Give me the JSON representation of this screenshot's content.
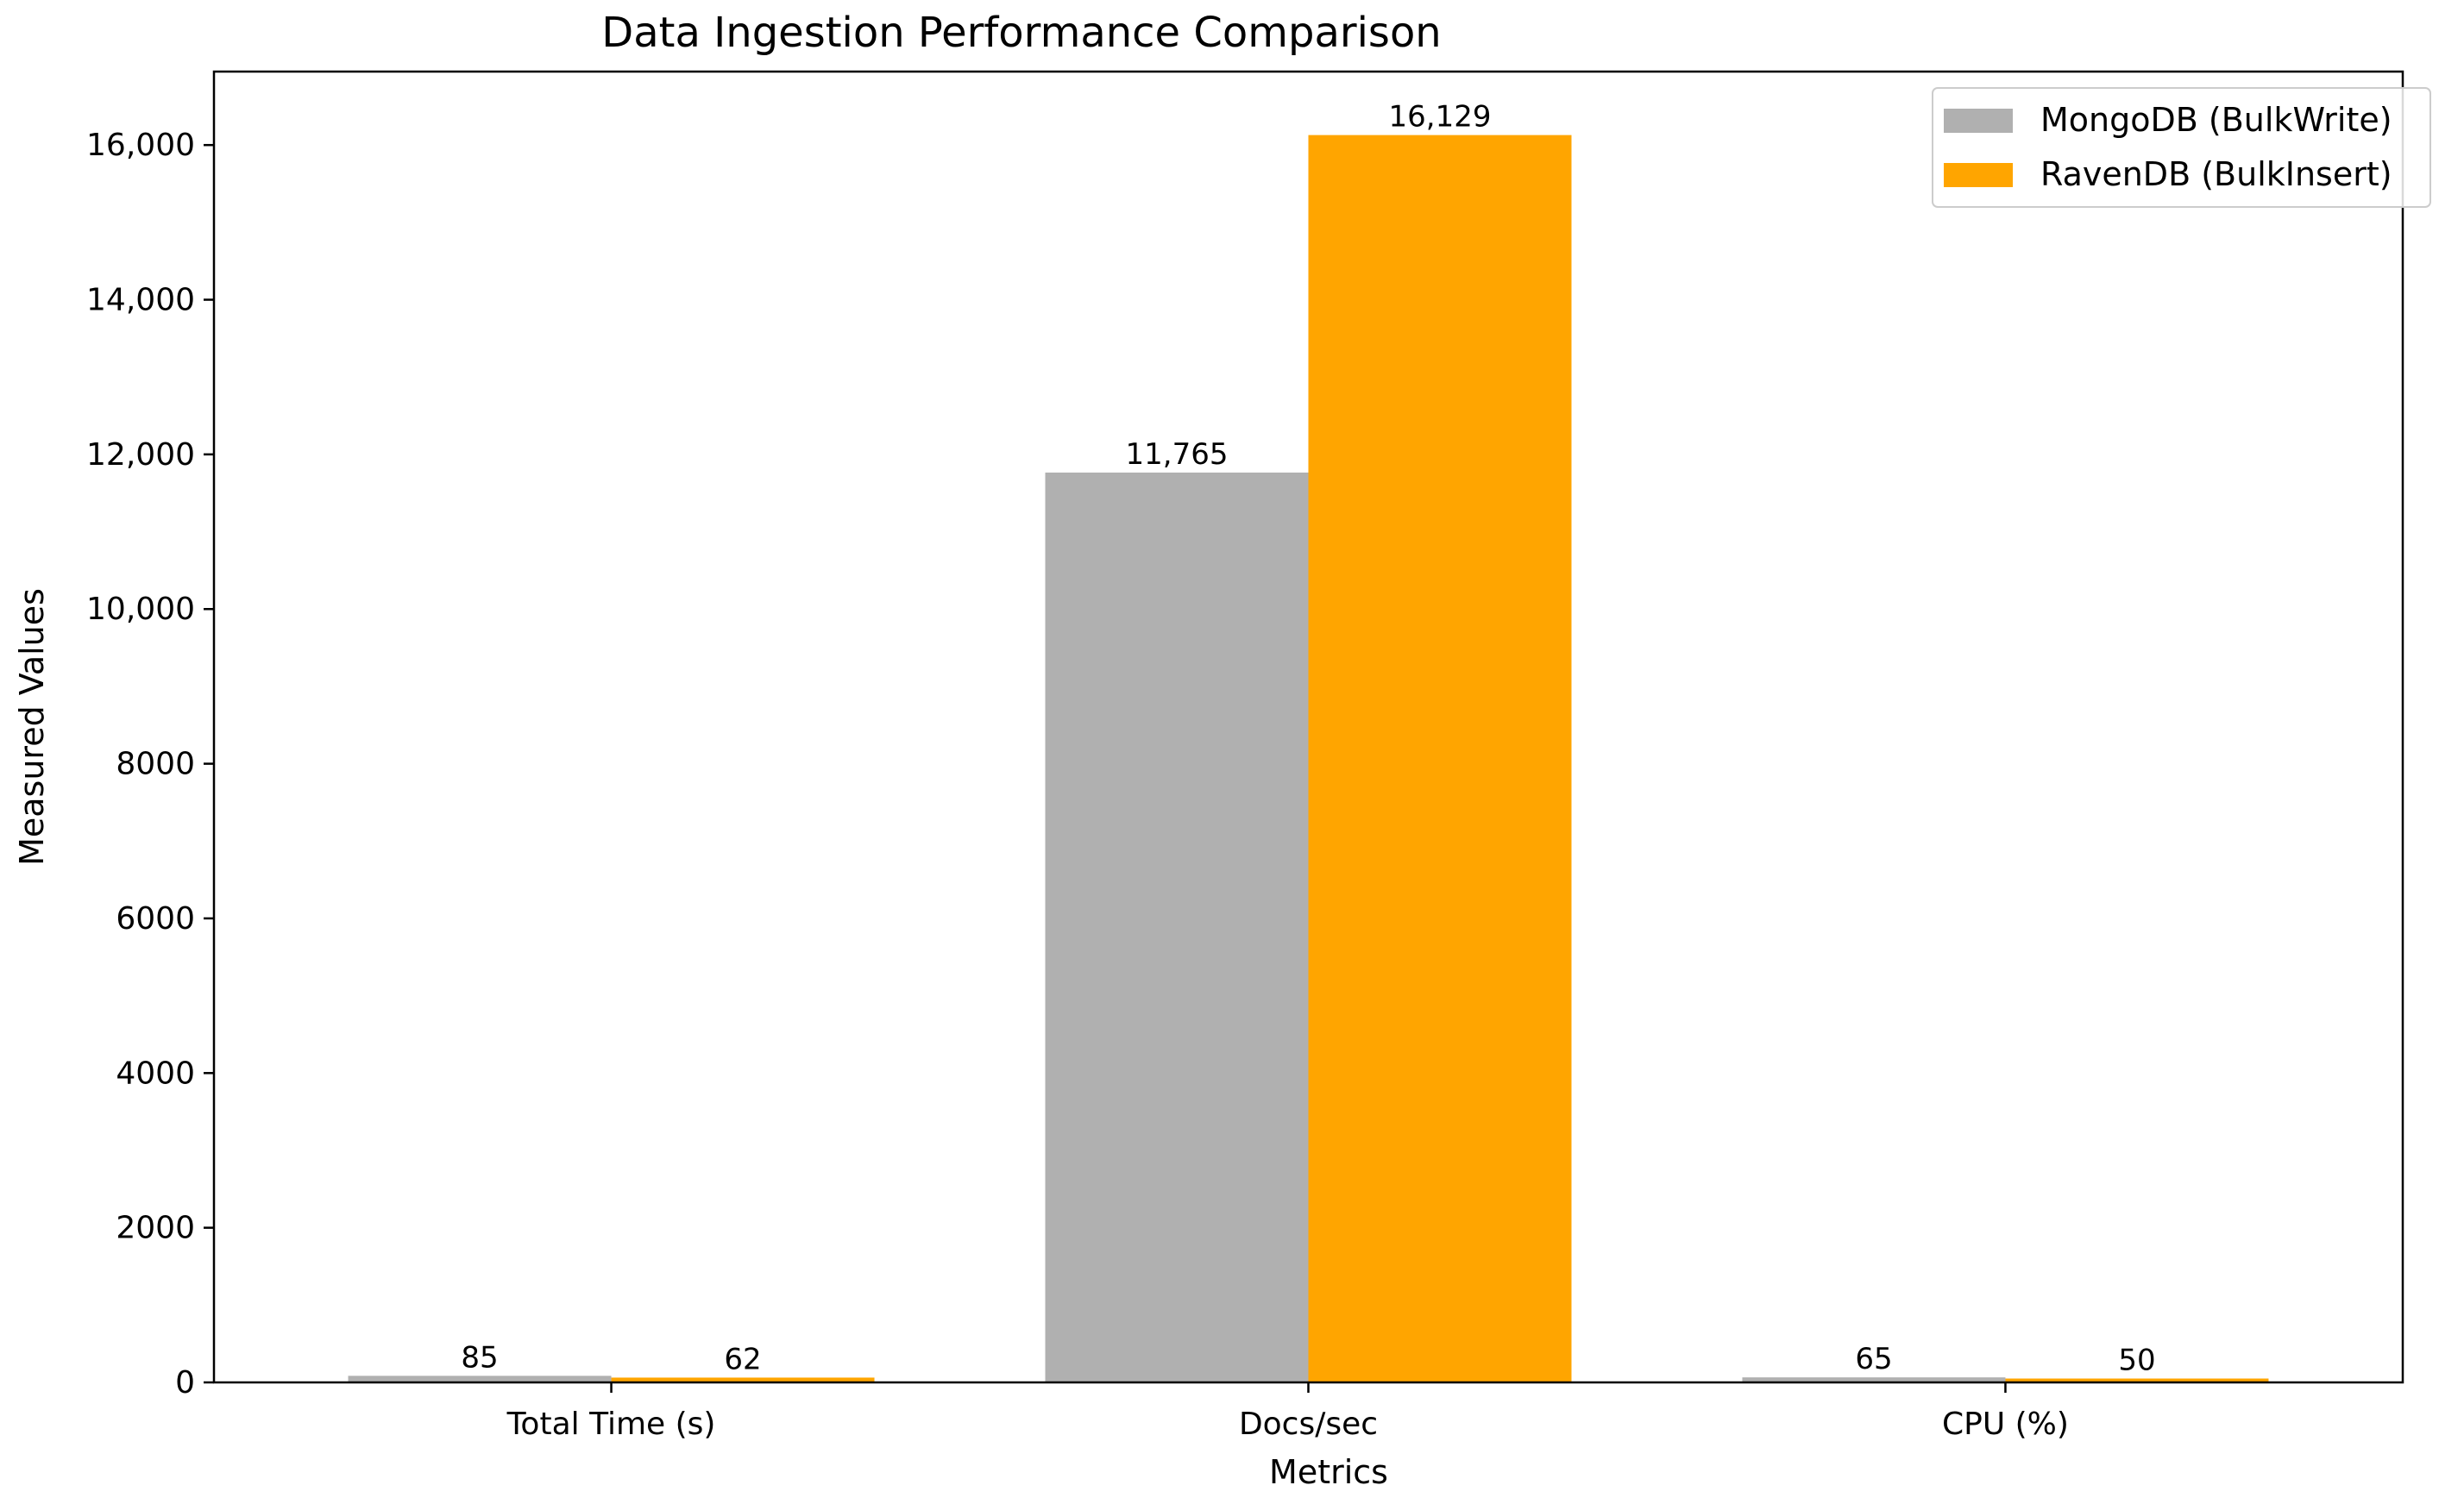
{
  "chart_data": {
    "type": "bar",
    "title": "Data Ingestion Performance Comparison",
    "xlabel": "Metrics",
    "ylabel": "Measured Values",
    "categories": [
      "Total Time (s)",
      "Docs/sec",
      "CPU (%)"
    ],
    "series": [
      {
        "name": "MongoDB (BulkWrite)",
        "color": "#b0b0b0",
        "values": [
          85,
          11765,
          65
        ],
        "labels": [
          "85",
          "11,765",
          "65"
        ]
      },
      {
        "name": "RavenDB (BulkInsert)",
        "color": "#ffa500",
        "values": [
          62,
          16129,
          50
        ],
        "labels": [
          "62",
          "16,129",
          "50"
        ]
      }
    ],
    "ylim": [
      0,
      16950
    ],
    "yticks": [
      0,
      2000,
      4000,
      6000,
      8000,
      10000,
      12000,
      14000,
      16000
    ],
    "ytick_labels": [
      "0",
      "2000",
      "4000",
      "6000",
      "8000",
      "10,000",
      "12,000",
      "14,000",
      "16,000"
    ],
    "grid": false,
    "legend_position": "top-right"
  }
}
